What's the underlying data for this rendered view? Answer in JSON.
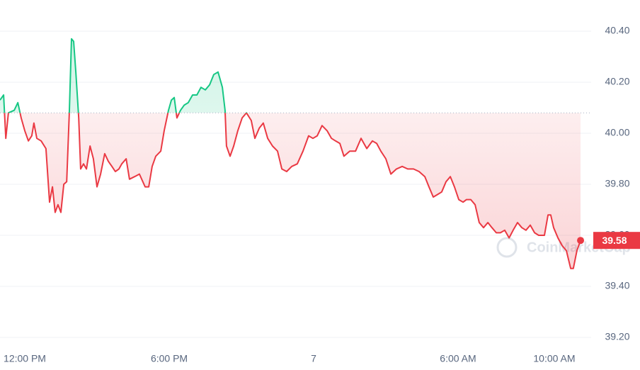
{
  "chart_data": {
    "type": "line",
    "x": [
      10.97,
      11.12,
      11.21,
      11.32,
      11.56,
      11.71,
      11.85,
      12.0,
      12.15,
      12.29,
      12.38,
      12.5,
      12.68,
      12.88,
      13.03,
      13.15,
      13.26,
      13.38,
      13.5,
      13.62,
      13.74,
      13.85,
      13.94,
      14.03,
      14.12,
      14.24,
      14.32,
      14.44,
      14.56,
      14.71,
      14.85,
      15.0,
      15.15,
      15.32,
      15.47,
      15.62,
      15.76,
      15.91,
      16.03,
      16.21,
      16.35,
      16.56,
      16.76,
      17.0,
      17.15,
      17.29,
      17.44,
      17.65,
      17.79,
      17.97,
      18.09,
      18.21,
      18.32,
      18.47,
      18.62,
      18.79,
      18.97,
      19.15,
      19.32,
      19.5,
      19.68,
      19.85,
      20.03,
      20.21,
      20.32,
      20.38,
      20.53,
      20.68,
      20.85,
      21.03,
      21.21,
      21.41,
      21.56,
      21.74,
      21.91,
      22.09,
      22.29,
      22.5,
      22.68,
      22.88,
      23.09,
      23.32,
      23.56,
      23.79,
      23.97,
      24.15,
      24.35,
      24.56,
      24.74,
      24.91,
      25.09,
      25.26,
      25.5,
      25.74,
      25.97,
      26.21,
      26.44,
      26.62,
      26.79,
      27.0,
      27.21,
      27.44,
      27.68,
      27.91,
      28.15,
      28.38,
      28.62,
      28.79,
      28.97,
      29.15,
      29.32,
      29.5,
      29.68,
      29.85,
      30.03,
      30.21,
      30.35,
      30.53,
      30.71,
      30.88,
      31.06,
      31.24,
      31.41,
      31.59,
      31.76,
      31.94,
      32.12,
      32.29,
      32.47,
      32.65,
      32.82,
      33.0,
      33.18,
      33.35,
      33.59,
      33.74,
      33.85,
      33.97,
      34.15,
      34.32,
      34.5,
      34.68,
      34.79,
      34.94,
      35.09
    ],
    "series": [
      {
        "color": "#ea3943",
        "color_above": "#16c784",
        "values": [
          40.13,
          40.15,
          39.98,
          40.08,
          40.09,
          40.12,
          40.06,
          40.01,
          39.97,
          39.99,
          40.04,
          39.98,
          39.97,
          39.94,
          39.73,
          39.79,
          39.69,
          39.72,
          39.69,
          39.8,
          39.81,
          40.08,
          40.37,
          40.36,
          40.24,
          40.06,
          39.86,
          39.88,
          39.86,
          39.95,
          39.9,
          39.79,
          39.84,
          39.92,
          39.89,
          39.87,
          39.85,
          39.86,
          39.88,
          39.9,
          39.82,
          39.83,
          39.84,
          39.79,
          39.79,
          39.87,
          39.91,
          39.93,
          40.01,
          40.09,
          40.13,
          40.14,
          40.06,
          40.09,
          40.11,
          40.12,
          40.15,
          40.15,
          40.18,
          40.17,
          40.19,
          40.23,
          40.24,
          40.18,
          40.09,
          39.95,
          39.91,
          39.95,
          40.01,
          40.06,
          40.08,
          40.05,
          39.98,
          40.02,
          40.04,
          39.98,
          39.95,
          39.93,
          39.86,
          39.85,
          39.87,
          39.88,
          39.93,
          39.99,
          39.98,
          39.99,
          40.03,
          40.01,
          39.98,
          39.97,
          39.96,
          39.91,
          39.93,
          39.93,
          39.98,
          39.94,
          39.97,
          39.96,
          39.93,
          39.9,
          39.84,
          39.86,
          39.87,
          39.86,
          39.86,
          39.85,
          39.83,
          39.79,
          39.75,
          39.76,
          39.77,
          39.81,
          39.83,
          39.79,
          39.74,
          39.73,
          39.74,
          39.74,
          39.72,
          39.65,
          39.63,
          39.65,
          39.63,
          39.61,
          39.61,
          39.62,
          39.59,
          39.62,
          39.65,
          39.63,
          39.62,
          39.64,
          39.61,
          39.6,
          39.6,
          39.68,
          39.68,
          39.63,
          39.59,
          39.56,
          39.54,
          39.47,
          39.47,
          39.54,
          39.58
        ]
      }
    ],
    "baseline": 40.08,
    "current_price": 39.58,
    "watermark": "CoinMarketCap",
    "xlim": [
      10.97,
      35.53
    ],
    "xticks": [
      {
        "value": 12,
        "label": "12:00 PM"
      },
      {
        "value": 18,
        "label": "6:00 PM"
      },
      {
        "value": 24,
        "label": "7"
      },
      {
        "value": 30,
        "label": "6:00 AM"
      },
      {
        "value": 34,
        "label": "10:00 AM"
      }
    ],
    "ylim": [
      39.2,
      40.4
    ],
    "yticks": [
      {
        "value": 39.2,
        "label": "39.20"
      },
      {
        "value": 39.4,
        "label": "39.40"
      },
      {
        "value": 39.6,
        "label": "39.60"
      },
      {
        "value": 39.8,
        "label": "39.80"
      },
      {
        "value": 40.0,
        "label": "40.00"
      },
      {
        "value": 40.2,
        "label": "40.20"
      },
      {
        "value": 40.4,
        "label": "40.40"
      }
    ],
    "grid": true
  }
}
